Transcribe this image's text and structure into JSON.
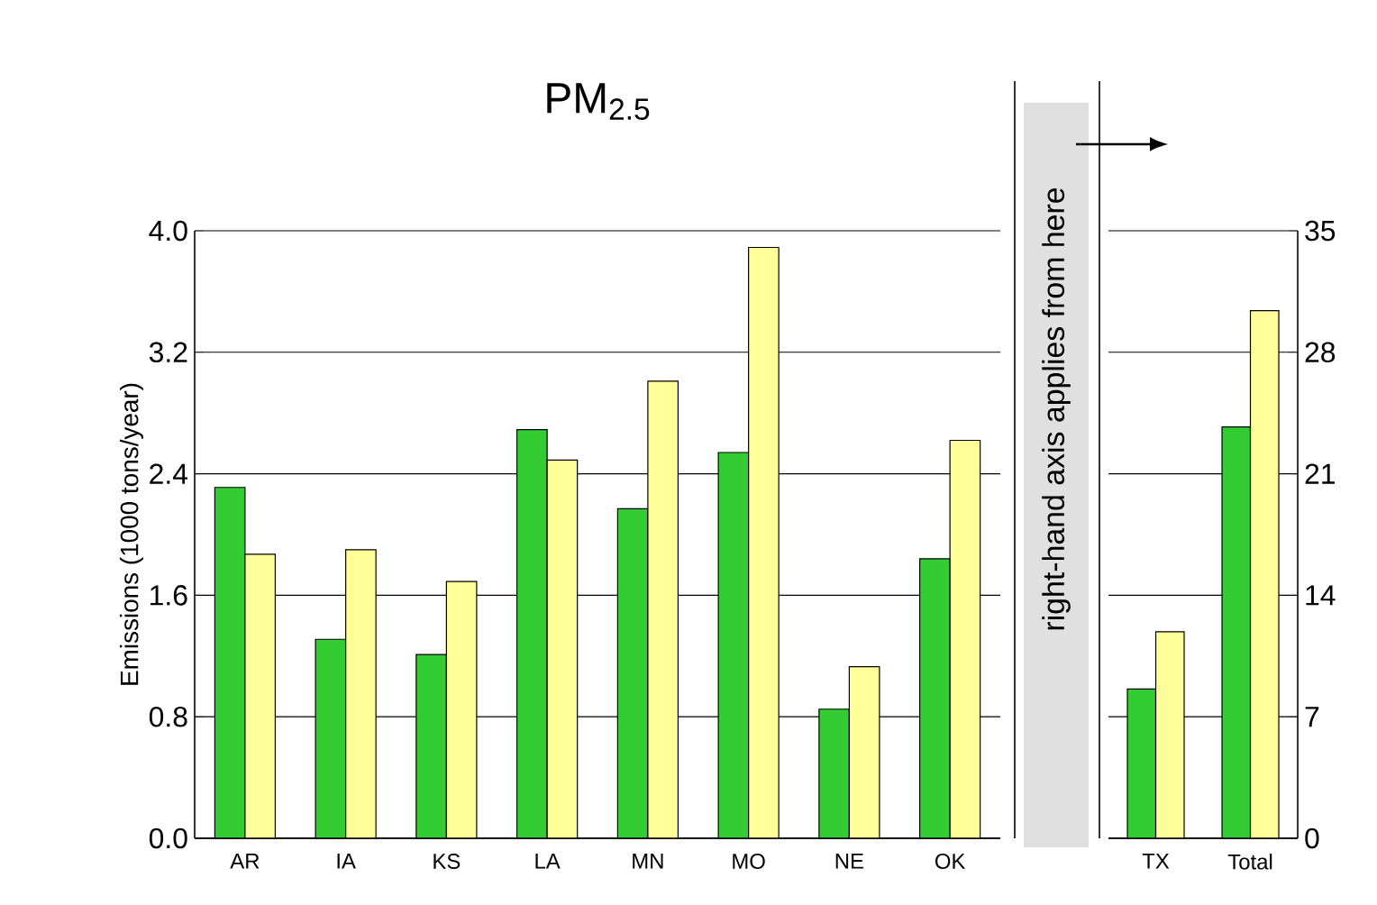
{
  "chart_data": [
    {
      "type": "bar",
      "title": "PM$_{2.5}$",
      "ylabel": "Emissions (1000 tons/year)",
      "categories": [
        "AR",
        "IA",
        "KS",
        "LA",
        "MN",
        "MO",
        "NE",
        "OK"
      ],
      "series": [
        {
          "color": "#33cc33",
          "values": [
            2.31,
            1.31,
            1.21,
            2.69,
            2.17,
            2.54,
            0.85,
            1.84
          ]
        },
        {
          "color": "#ffff99",
          "values": [
            1.87,
            1.9,
            1.69,
            2.49,
            3.01,
            3.89,
            1.13,
            2.62
          ]
        }
      ],
      "ylim": [
        0,
        4
      ],
      "yticks": [
        {
          "value": 0,
          "label": "0.0"
        },
        0.8,
        1.6,
        2.4,
        3.2,
        {
          "value": 4,
          "label": "4.0"
        }
      ],
      "grid": "y"
    },
    {
      "type": "bar",
      "categories": [
        "TX",
        "Total"
      ],
      "series": [
        {
          "color": "#33cc33",
          "values": [
            8.6,
            23.7
          ],
          "axis": "y2"
        },
        {
          "color": "#ffff99",
          "values": [
            11.9,
            30.4
          ],
          "axis": "y2"
        }
      ],
      "y2lim": [
        0,
        35
      ],
      "y2ticks": [
        0,
        7,
        14,
        21,
        28,
        35
      ],
      "grid": "y",
      "annotations": [
        "right-hand axis applies from here"
      ]
    }
  ]
}
